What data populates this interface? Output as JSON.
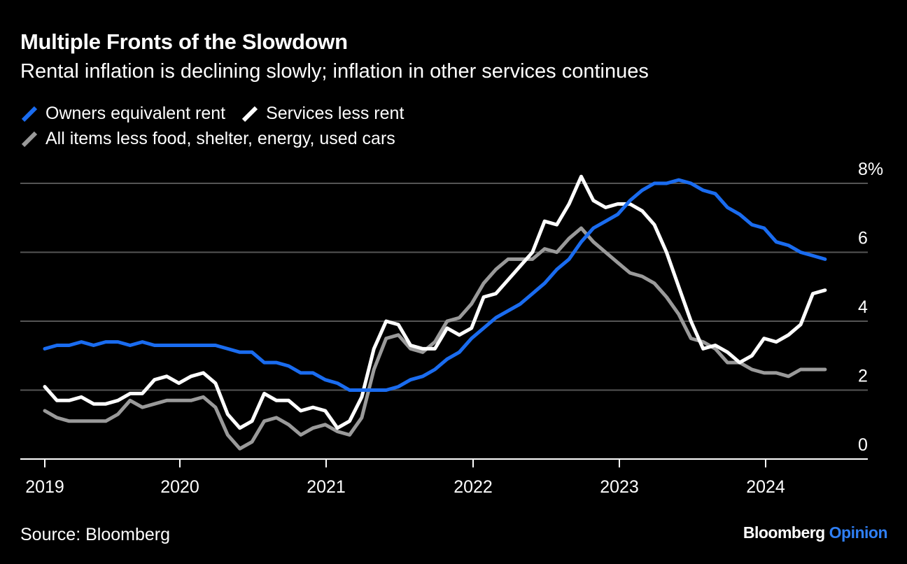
{
  "title": "Multiple Fronts of the Slowdown",
  "subtitle": "Rental inflation is declining slowly; inflation in other services continues",
  "source": "Source: Bloomberg",
  "brand": {
    "main": "Bloomberg",
    "accent": "Opinion"
  },
  "colors": {
    "oer": "#1a6cf0",
    "services": "#ffffff",
    "core": "#9a9a9a",
    "grid": "#555555",
    "brand_accent": "#2f7ff5"
  },
  "chart_data": {
    "type": "line",
    "title": "Multiple Fronts of the Slowdown",
    "x_start": "2019-01",
    "x_frequency": "monthly",
    "x_ticks": [
      "2019",
      "2020",
      "2021",
      "2022",
      "2023",
      "2024"
    ],
    "y_ticks": [
      "0",
      "2",
      "4",
      "6",
      "8%"
    ],
    "y_tick_values": [
      0,
      2,
      4,
      6,
      8
    ],
    "ylim": [
      0,
      8
    ],
    "grid": true,
    "legend_position": "top-left",
    "series": [
      {
        "name": "Owners equivalent rent",
        "color": "#1a6cf0",
        "values": [
          3.2,
          3.3,
          3.3,
          3.4,
          3.3,
          3.4,
          3.4,
          3.3,
          3.4,
          3.3,
          3.3,
          3.3,
          3.3,
          3.3,
          3.3,
          3.2,
          3.1,
          3.1,
          2.8,
          2.8,
          2.7,
          2.5,
          2.5,
          2.3,
          2.2,
          2.0,
          2.0,
          2.0,
          2.0,
          2.1,
          2.3,
          2.4,
          2.6,
          2.9,
          3.1,
          3.5,
          3.8,
          4.1,
          4.3,
          4.5,
          4.8,
          5.1,
          5.5,
          5.8,
          6.3,
          6.7,
          6.9,
          7.1,
          7.5,
          7.8,
          8.0,
          8.0,
          8.1,
          8.0,
          7.8,
          7.7,
          7.3,
          7.1,
          6.8,
          6.7,
          6.3,
          6.2,
          6.0,
          5.9,
          5.8
        ]
      },
      {
        "name": "Services less rent",
        "color": "#ffffff",
        "values": [
          2.1,
          1.7,
          1.7,
          1.8,
          1.6,
          1.6,
          1.7,
          1.9,
          1.9,
          2.3,
          2.4,
          2.2,
          2.4,
          2.5,
          2.2,
          1.3,
          0.9,
          1.1,
          1.9,
          1.7,
          1.7,
          1.4,
          1.5,
          1.4,
          0.9,
          1.1,
          1.8,
          3.2,
          4.0,
          3.9,
          3.3,
          3.2,
          3.2,
          3.8,
          3.6,
          3.8,
          4.7,
          4.8,
          5.2,
          5.6,
          6.0,
          6.9,
          6.8,
          7.4,
          8.2,
          7.5,
          7.3,
          7.4,
          7.4,
          7.2,
          6.8,
          6.0,
          5.0,
          4.0,
          3.2,
          3.3,
          3.1,
          2.8,
          3.0,
          3.5,
          3.4,
          3.6,
          3.9,
          4.8,
          4.9
        ]
      },
      {
        "name": "All items less food, shelter, energy, used cars",
        "color": "#9a9a9a",
        "values": [
          1.4,
          1.2,
          1.1,
          1.1,
          1.1,
          1.1,
          1.3,
          1.7,
          1.5,
          1.6,
          1.7,
          1.7,
          1.7,
          1.8,
          1.5,
          0.7,
          0.3,
          0.5,
          1.1,
          1.2,
          1.0,
          0.7,
          0.9,
          1.0,
          0.8,
          0.7,
          1.2,
          2.6,
          3.5,
          3.6,
          3.2,
          3.1,
          3.4,
          4.0,
          4.1,
          4.5,
          5.1,
          5.5,
          5.8,
          5.8,
          5.8,
          6.1,
          6.0,
          6.4,
          6.7,
          6.3,
          6.0,
          5.7,
          5.4,
          5.3,
          5.1,
          4.7,
          4.2,
          3.5,
          3.4,
          3.2,
          2.8,
          2.8,
          2.6,
          2.5,
          2.5,
          2.4,
          2.6,
          2.6,
          2.6
        ]
      }
    ]
  }
}
